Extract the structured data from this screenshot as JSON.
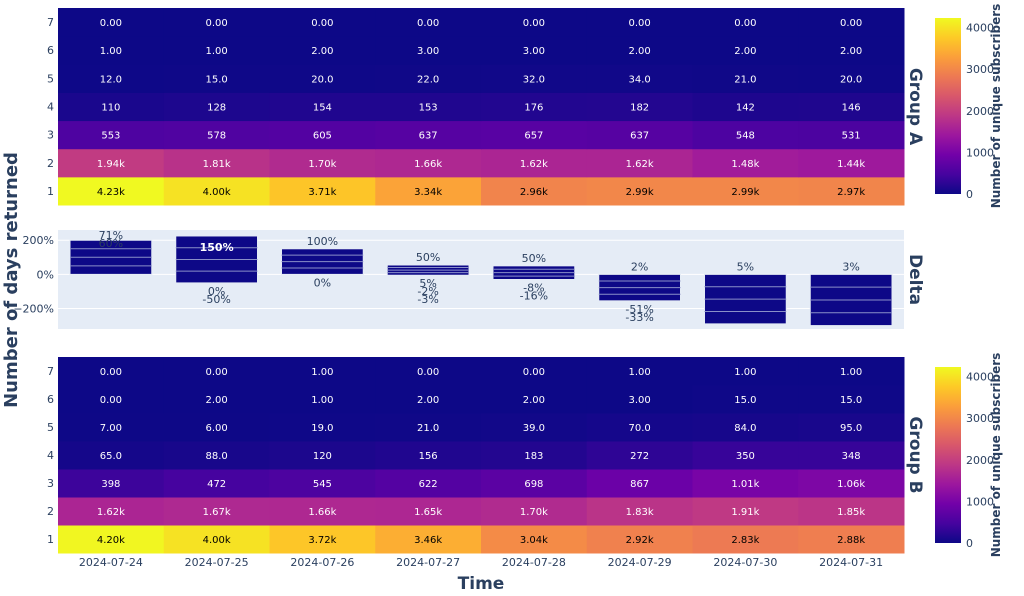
{
  "chart_data": [
    {
      "type": "heatmap",
      "panel_label": "Group A",
      "x": [
        "2024-07-24",
        "2024-07-25",
        "2024-07-26",
        "2024-07-27",
        "2024-07-28",
        "2024-07-29",
        "2024-07-30",
        "2024-07-31"
      ],
      "y": [
        "1",
        "2",
        "3",
        "4",
        "5",
        "6",
        "7"
      ],
      "values": [
        [
          4230,
          4000,
          3710,
          3340,
          2960,
          2990,
          2990,
          2970
        ],
        [
          1940,
          1810,
          1700,
          1660,
          1620,
          1620,
          1480,
          1440
        ],
        [
          553,
          578,
          605,
          637,
          657,
          637,
          548,
          531
        ],
        [
          110,
          128,
          154,
          153,
          176,
          182,
          142,
          146
        ],
        [
          12,
          15,
          20,
          22,
          32,
          34,
          21,
          20
        ],
        [
          1,
          1,
          2,
          3,
          3,
          2,
          2,
          2
        ],
        [
          0,
          0,
          0,
          0,
          0,
          0,
          0,
          0
        ]
      ],
      "labels": [
        [
          "4.23k",
          "4.00k",
          "3.71k",
          "3.34k",
          "2.96k",
          "2.99k",
          "2.99k",
          "2.97k"
        ],
        [
          "1.94k",
          "1.81k",
          "1.70k",
          "1.66k",
          "1.62k",
          "1.62k",
          "1.48k",
          "1.44k"
        ],
        [
          "553",
          "578",
          "605",
          "637",
          "657",
          "637",
          "548",
          "531"
        ],
        [
          "110",
          "128",
          "154",
          "153",
          "176",
          "182",
          "142",
          "146"
        ],
        [
          "12.0",
          "15.0",
          "20.0",
          "22.0",
          "32.0",
          "34.0",
          "21.0",
          "20.0"
        ],
        [
          "1.00",
          "1.00",
          "2.00",
          "3.00",
          "3.00",
          "2.00",
          "2.00",
          "2.00"
        ],
        [
          "0.00",
          "0.00",
          "0.00",
          "0.00",
          "0.00",
          "0.00",
          "0.00",
          "0.00"
        ]
      ],
      "colorscale": "plasma",
      "zrange": [
        0,
        4230
      ],
      "colorbar": {
        "title": "Number of unique subscribers",
        "ticks": [
          "0",
          "1000",
          "2000",
          "3000",
          "4000"
        ]
      }
    },
    {
      "type": "bar",
      "panel_label": "Delta",
      "barmode": "relative",
      "x": [
        "2024-07-24",
        "2024-07-25",
        "2024-07-26",
        "2024-07-27",
        "2024-07-28",
        "2024-07-29",
        "2024-07-30",
        "2024-07-31"
      ],
      "extent_pct": [
        [
          0,
          200
        ],
        [
          -50,
          225
        ],
        [
          0,
          150
        ],
        [
          -5,
          55
        ],
        [
          -30,
          50
        ],
        [
          -155,
          0
        ],
        [
          -290,
          0
        ],
        [
          -300,
          0
        ]
      ],
      "labels": [
        [
          "71%",
          "60%"
        ],
        [
          "150%",
          "0%",
          "-50%"
        ],
        [
          "100%",
          "0%"
        ],
        [
          "50%",
          "5%",
          "-2%",
          "-3%"
        ],
        [
          "50%",
          "-8%",
          "-16%"
        ],
        [
          "2%",
          "-51%",
          "-33%"
        ],
        [
          "5%"
        ],
        [
          "3%"
        ]
      ],
      "yticks": [
        "200%",
        "0%",
        "−200%"
      ],
      "ylim": [
        -320,
        260
      ]
    },
    {
      "type": "heatmap",
      "panel_label": "Group B",
      "x": [
        "2024-07-24",
        "2024-07-25",
        "2024-07-26",
        "2024-07-27",
        "2024-07-28",
        "2024-07-29",
        "2024-07-30",
        "2024-07-31"
      ],
      "y": [
        "1",
        "2",
        "3",
        "4",
        "5",
        "6",
        "7"
      ],
      "values": [
        [
          4200,
          4000,
          3720,
          3460,
          3040,
          2920,
          2830,
          2880
        ],
        [
          1620,
          1670,
          1660,
          1650,
          1700,
          1830,
          1910,
          1850
        ],
        [
          398,
          472,
          545,
          622,
          698,
          867,
          1010,
          1060
        ],
        [
          65,
          88,
          120,
          156,
          183,
          272,
          350,
          348
        ],
        [
          7,
          6,
          19,
          21,
          39,
          70,
          84,
          95
        ],
        [
          0,
          2,
          1,
          2,
          2,
          3,
          15,
          15
        ],
        [
          0,
          0,
          1,
          0,
          0,
          1,
          1,
          1
        ]
      ],
      "labels": [
        [
          "4.20k",
          "4.00k",
          "3.72k",
          "3.46k",
          "3.04k",
          "2.92k",
          "2.83k",
          "2.88k"
        ],
        [
          "1.62k",
          "1.67k",
          "1.66k",
          "1.65k",
          "1.70k",
          "1.83k",
          "1.91k",
          "1.85k"
        ],
        [
          "398",
          "472",
          "545",
          "622",
          "698",
          "867",
          "1.01k",
          "1.06k"
        ],
        [
          "65.0",
          "88.0",
          "120",
          "156",
          "183",
          "272",
          "350",
          "348"
        ],
        [
          "7.00",
          "6.00",
          "19.0",
          "21.0",
          "39.0",
          "70.0",
          "84.0",
          "95.0"
        ],
        [
          "0.00",
          "2.00",
          "1.00",
          "2.00",
          "2.00",
          "3.00",
          "15.0",
          "15.0"
        ],
        [
          "0.00",
          "0.00",
          "1.00",
          "0.00",
          "0.00",
          "1.00",
          "1.00",
          "1.00"
        ]
      ],
      "colorscale": "plasma",
      "zrange": [
        0,
        4230
      ],
      "colorbar": {
        "title": "Number of unique subscribers",
        "ticks": [
          "0",
          "1000",
          "2000",
          "3000",
          "4000"
        ]
      }
    }
  ],
  "axes": {
    "xlabel": "Time",
    "ylabel": "Number of days returned"
  },
  "colors": {
    "bar": "#0d0887",
    "plot_bg": "#e5ecf6",
    "axis_text": "#2a3f5f"
  }
}
